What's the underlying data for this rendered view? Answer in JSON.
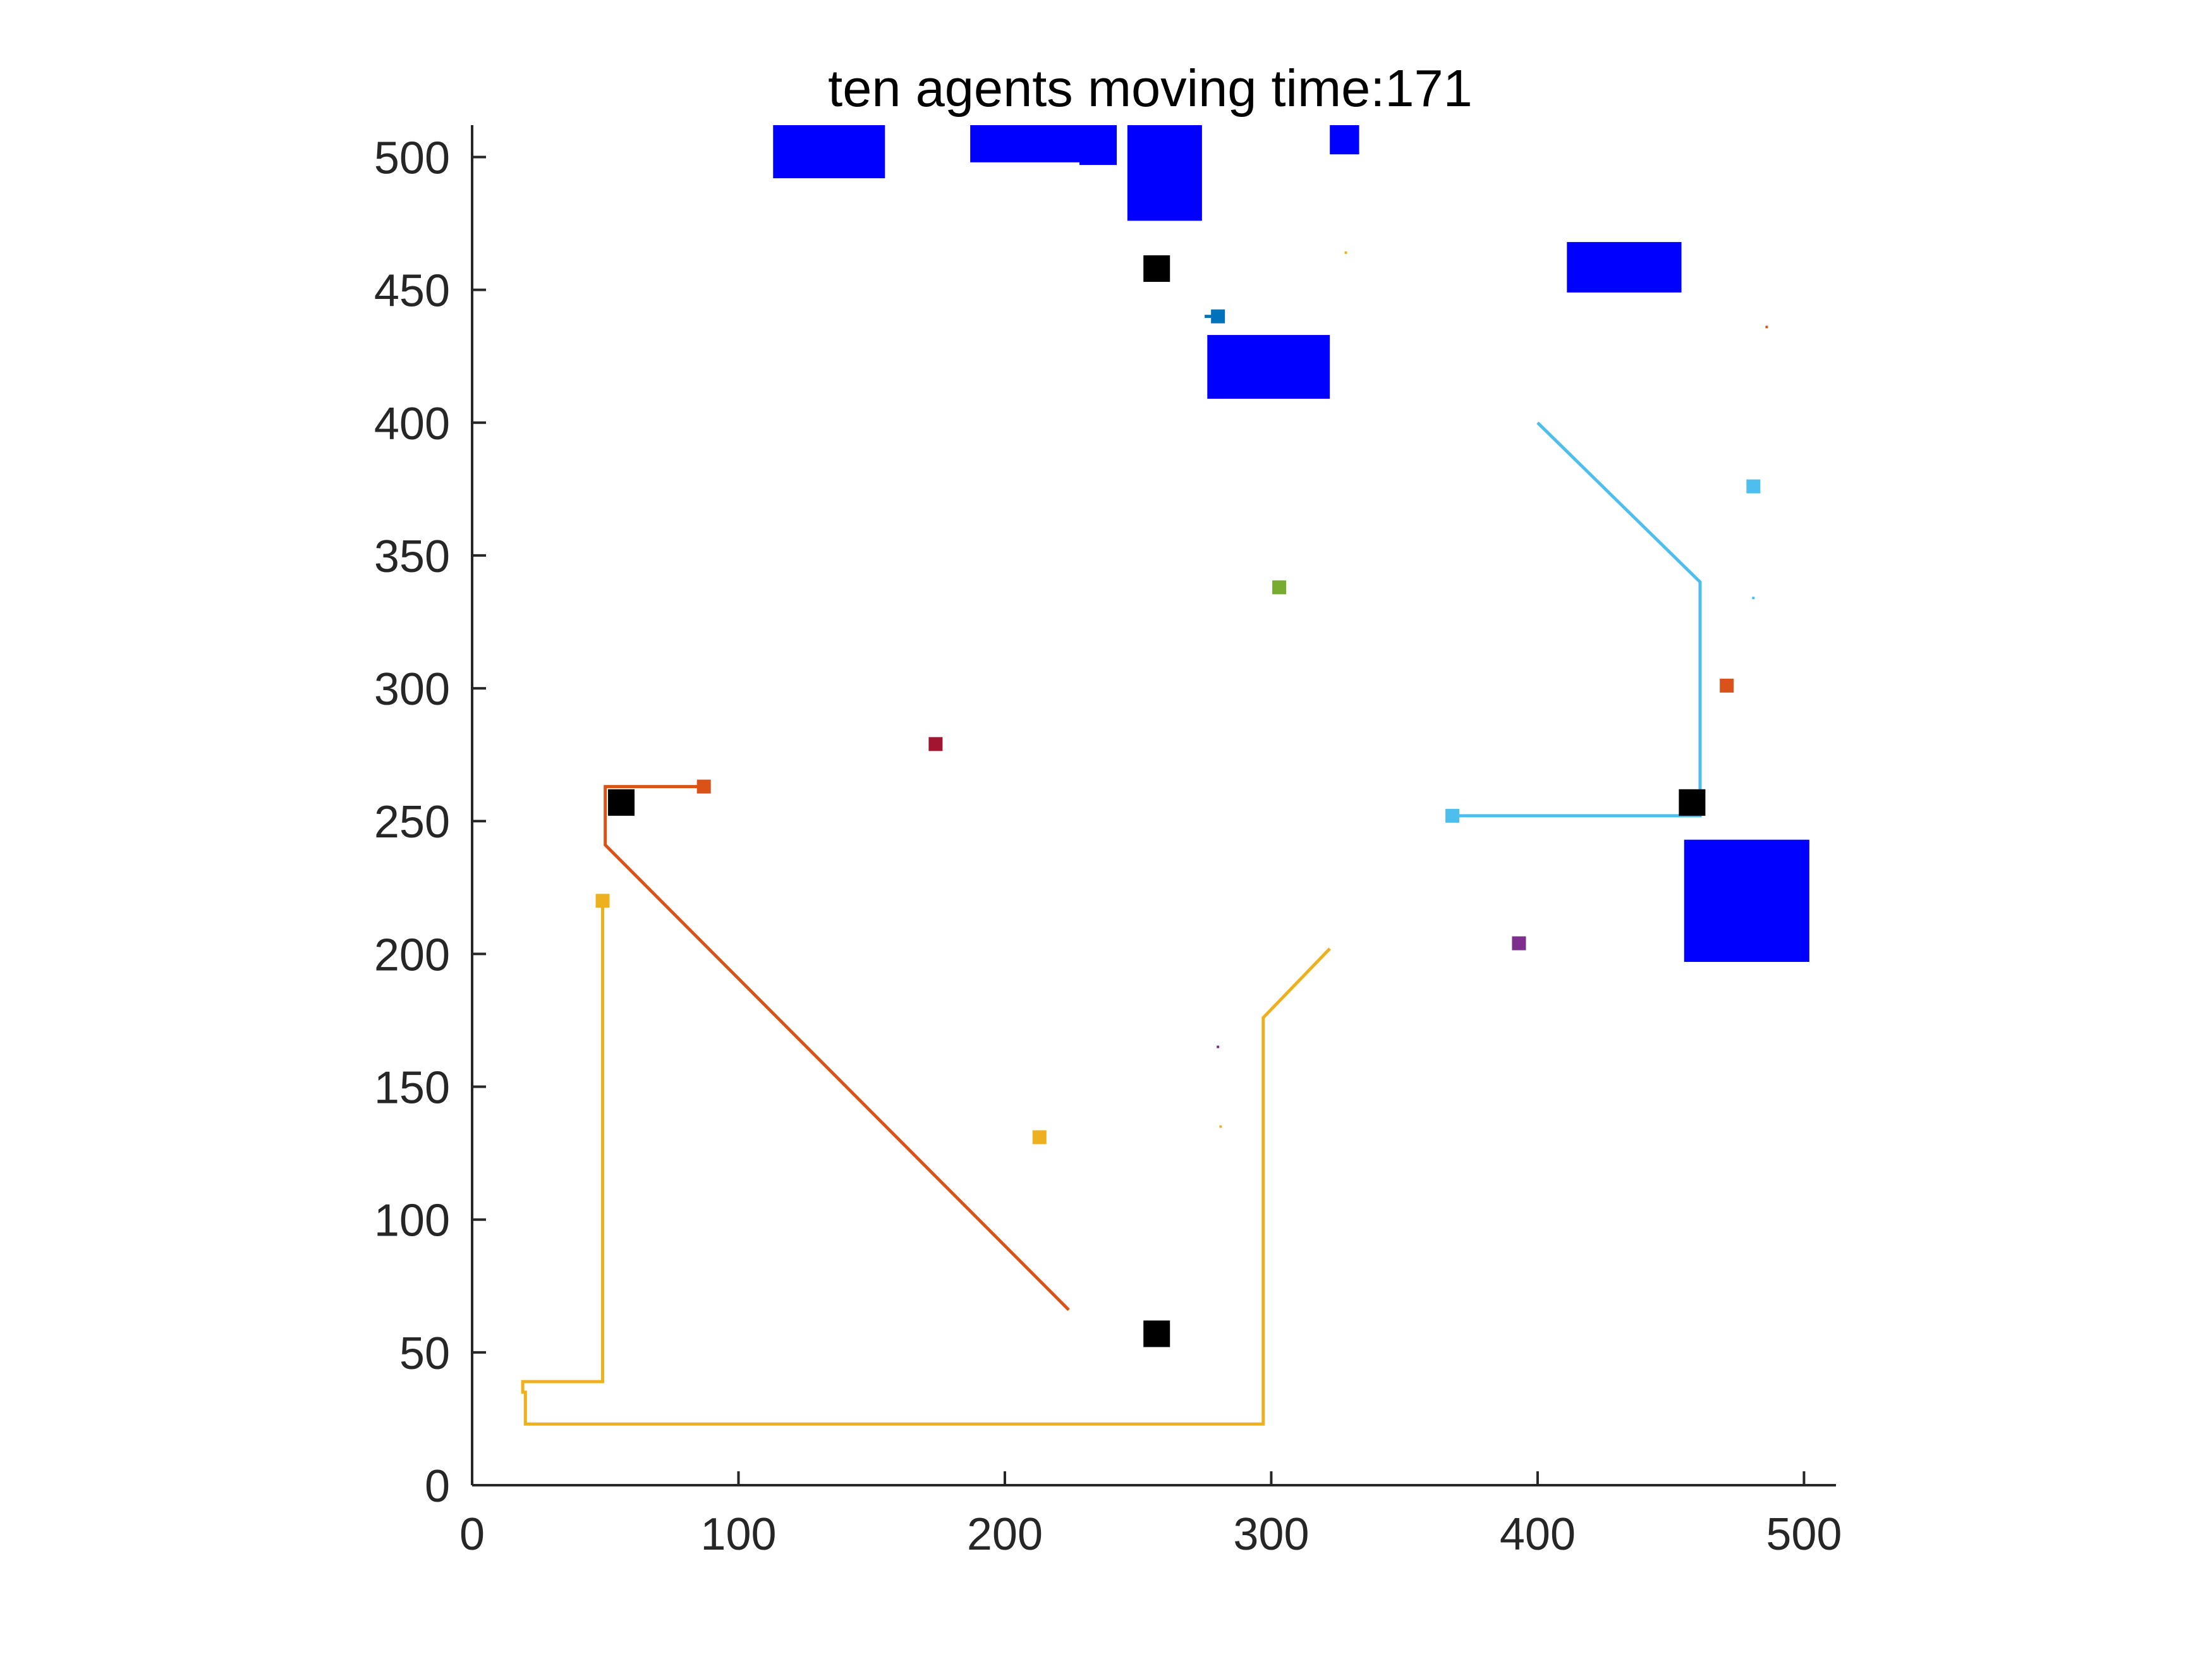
{
  "chart_data": {
    "type": "scatter",
    "title": "ten agents moving time:171",
    "xlabel": "",
    "ylabel": "",
    "xlim": [
      0,
      512
    ],
    "ylim": [
      0,
      512
    ],
    "grid": false,
    "x_ticks": [
      0,
      100,
      200,
      300,
      400,
      500
    ],
    "y_ticks": [
      0,
      50,
      100,
      150,
      200,
      250,
      300,
      350,
      400,
      450,
      500
    ],
    "x_tick_labels": [
      "0",
      "100",
      "200",
      "300",
      "400",
      "500"
    ],
    "y_tick_labels": [
      "0",
      "50",
      "100",
      "150",
      "200",
      "250",
      "300",
      "350",
      "400",
      "450",
      "500"
    ],
    "obstacles": [
      {
        "x0": 113,
        "x1": 155,
        "y0": 492,
        "y1": 512
      },
      {
        "x0": 187,
        "x1": 229,
        "y0": 498,
        "y1": 512
      },
      {
        "x0": 228,
        "x1": 242,
        "y0": 497,
        "y1": 512
      },
      {
        "x0": 246,
        "x1": 274,
        "y0": 476,
        "y1": 512
      },
      {
        "x0": 322,
        "x1": 333,
        "y0": 501,
        "y1": 512
      },
      {
        "x0": 276,
        "x1": 322,
        "y0": 409,
        "y1": 433
      },
      {
        "x0": 411,
        "x1": 454,
        "y0": 449,
        "y1": 468
      },
      {
        "x0": 455,
        "x1": 502,
        "y0": 197,
        "y1": 243
      }
    ],
    "landmarks": [
      {
        "x": 257,
        "y": 458
      },
      {
        "x": 56,
        "y": 257
      },
      {
        "x": 458,
        "y": 257
      },
      {
        "x": 257,
        "y": 57
      }
    ],
    "paths": [
      {
        "color": "#D95319",
        "points": [
          [
            224,
            66
          ],
          [
            50,
            241
          ],
          [
            50,
            263
          ],
          [
            87,
            263
          ]
        ]
      },
      {
        "color": "#EDB120",
        "points": [
          [
            322,
            202
          ],
          [
            297,
            176
          ],
          [
            297,
            23
          ],
          [
            20,
            23
          ],
          [
            20,
            35
          ],
          [
            19,
            35
          ],
          [
            19,
            39
          ],
          [
            49,
            39
          ],
          [
            49,
            220
          ]
        ]
      },
      {
        "color": "#4DBEEE",
        "points": [
          [
            400,
            400
          ],
          [
            461,
            340
          ],
          [
            461,
            252
          ],
          [
            368,
            252
          ]
        ]
      },
      {
        "color": "#0072BD",
        "points": [
          [
            275,
            440
          ],
          [
            280,
            440
          ]
        ]
      }
    ],
    "agents": [
      {
        "x": 87,
        "y": 263,
        "color": "#D95319"
      },
      {
        "x": 49,
        "y": 220,
        "color": "#EDB120"
      },
      {
        "x": 368,
        "y": 252,
        "color": "#4DBEEE"
      },
      {
        "x": 280,
        "y": 440,
        "color": "#0072BD"
      },
      {
        "x": 174,
        "y": 279,
        "color": "#A2142F"
      },
      {
        "x": 303,
        "y": 338,
        "color": "#77AC30"
      },
      {
        "x": 213,
        "y": 131,
        "color": "#EDB120"
      },
      {
        "x": 393,
        "y": 204,
        "color": "#7E2F8E"
      },
      {
        "x": 471,
        "y": 301,
        "color": "#D95319"
      },
      {
        "x": 481,
        "y": 376,
        "color": "#4DBEEE"
      }
    ],
    "specks": [
      {
        "x": 328,
        "y": 464,
        "color": "#EDB120"
      },
      {
        "x": 486,
        "y": 436,
        "color": "#D95319"
      },
      {
        "x": 481,
        "y": 334,
        "color": "#4DBEEE"
      },
      {
        "x": 280,
        "y": 165,
        "color": "#7E2F8E"
      },
      {
        "x": 281,
        "y": 135,
        "color": "#EDB120"
      }
    ],
    "colors": {
      "obstacle": "#0000FF",
      "landmark": "#000000",
      "axis": "#262626"
    }
  }
}
